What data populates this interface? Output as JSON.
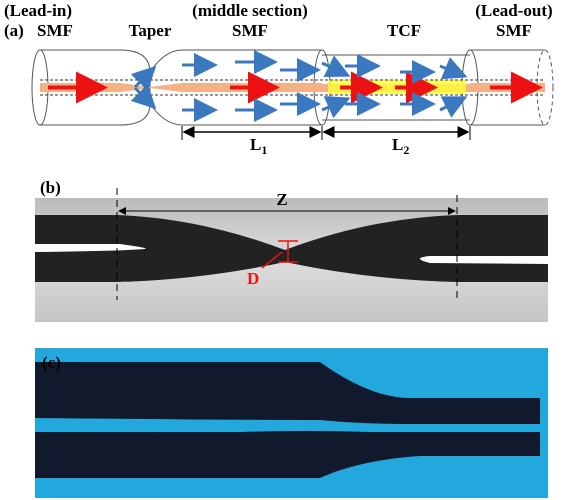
{
  "panel_a": {
    "label": "(a)",
    "sections": [
      {
        "name": "(Lead-in)",
        "fiber": "SMF"
      },
      {
        "name": "Taper"
      },
      {
        "name": "(middle section)",
        "fiber": "SMF"
      },
      {
        "fiber": "TCF"
      },
      {
        "name": "(Lead-out)",
        "fiber": "SMF"
      }
    ],
    "dimensions": [
      {
        "symbol": "L",
        "sub": "1"
      },
      {
        "symbol": "L",
        "sub": "2"
      }
    ]
  },
  "panel_b": {
    "label": "(b)",
    "length_label": "Z",
    "diameter_label": "D"
  },
  "panel_c": {
    "label": "(c)"
  }
}
